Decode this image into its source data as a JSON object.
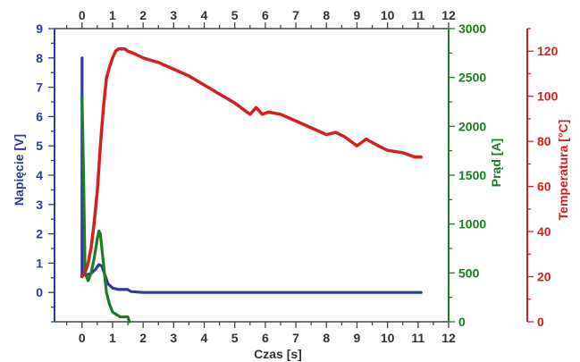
{
  "chart_data": {
    "type": "line",
    "xlabel": "Czas [s]",
    "x_ticks": [
      "0",
      "1",
      "2",
      "3",
      "4",
      "5",
      "6",
      "7",
      "8",
      "9",
      "10",
      "11",
      "12"
    ],
    "xlim": [
      -0.9,
      12
    ],
    "axes": {
      "voltage": {
        "label": "Napięcie [V]",
        "color": "#2f3b9a",
        "ylim": [
          -1,
          9
        ],
        "ticks": [
          "0",
          "1",
          "2",
          "3",
          "4",
          "5",
          "6",
          "7",
          "8",
          "9"
        ]
      },
      "current": {
        "label": "Prąd [A]",
        "color": "#1e7d24",
        "ylim": [
          0,
          3000
        ],
        "ticks": [
          "0",
          "500",
          "1000",
          "1500",
          "2000",
          "2500",
          "3000"
        ]
      },
      "temperature": {
        "label": "Temperatura [°C]",
        "color": "#d42020",
        "ylim": [
          0,
          130
        ],
        "ticks": [
          "0",
          "20",
          "40",
          "60",
          "80",
          "100",
          "120"
        ]
      }
    },
    "series": [
      {
        "axis": "voltage",
        "color": "#2f3b9a",
        "x": [
          0,
          0,
          0,
          0.05,
          0.15,
          0.3,
          0.45,
          0.55,
          0.65,
          0.75,
          0.85,
          1.0,
          1.2,
          1.5,
          1.6,
          2.0,
          4.0,
          6.0,
          8.0,
          10.0,
          11.1
        ],
        "y": [
          8.0,
          6.7,
          0.55,
          0.6,
          0.6,
          0.65,
          0.8,
          0.95,
          0.9,
          0.6,
          0.3,
          0.15,
          0.1,
          0.1,
          0.03,
          0.0,
          0.0,
          0.0,
          0.0,
          0.0,
          0.0
        ]
      },
      {
        "axis": "current",
        "color": "#1e7d24",
        "x": [
          0,
          0.05,
          0.1,
          0.2,
          0.3,
          0.4,
          0.5,
          0.55,
          0.6,
          0.7,
          0.8,
          0.9,
          1.0,
          1.1,
          1.25,
          1.5,
          1.55
        ],
        "y": [
          2300,
          1500,
          500,
          420,
          500,
          650,
          850,
          930,
          900,
          600,
          300,
          180,
          100,
          80,
          50,
          50,
          0
        ]
      },
      {
        "axis": "temperature",
        "color": "#d42020",
        "x": [
          0,
          0.1,
          0.2,
          0.3,
          0.4,
          0.5,
          0.6,
          0.7,
          0.8,
          0.9,
          1.0,
          1.1,
          1.2,
          1.3,
          1.4,
          1.5,
          1.7,
          2.0,
          2.5,
          3.0,
          3.5,
          4.0,
          4.5,
          5.0,
          5.5,
          5.7,
          5.9,
          6.1,
          6.5,
          7.0,
          7.5,
          8.0,
          8.3,
          8.6,
          9.0,
          9.3,
          9.7,
          10.0,
          10.5,
          10.9,
          11.1
        ],
        "y": [
          20,
          22,
          26,
          33,
          44,
          58,
          78,
          95,
          108,
          113,
          117,
          120,
          121,
          121,
          121,
          120,
          119,
          117,
          115,
          112,
          109,
          105,
          101,
          97,
          92,
          95,
          92,
          93,
          92,
          89,
          86,
          83,
          84,
          82,
          78,
          81,
          78,
          76,
          75,
          73,
          73
        ]
      }
    ]
  }
}
